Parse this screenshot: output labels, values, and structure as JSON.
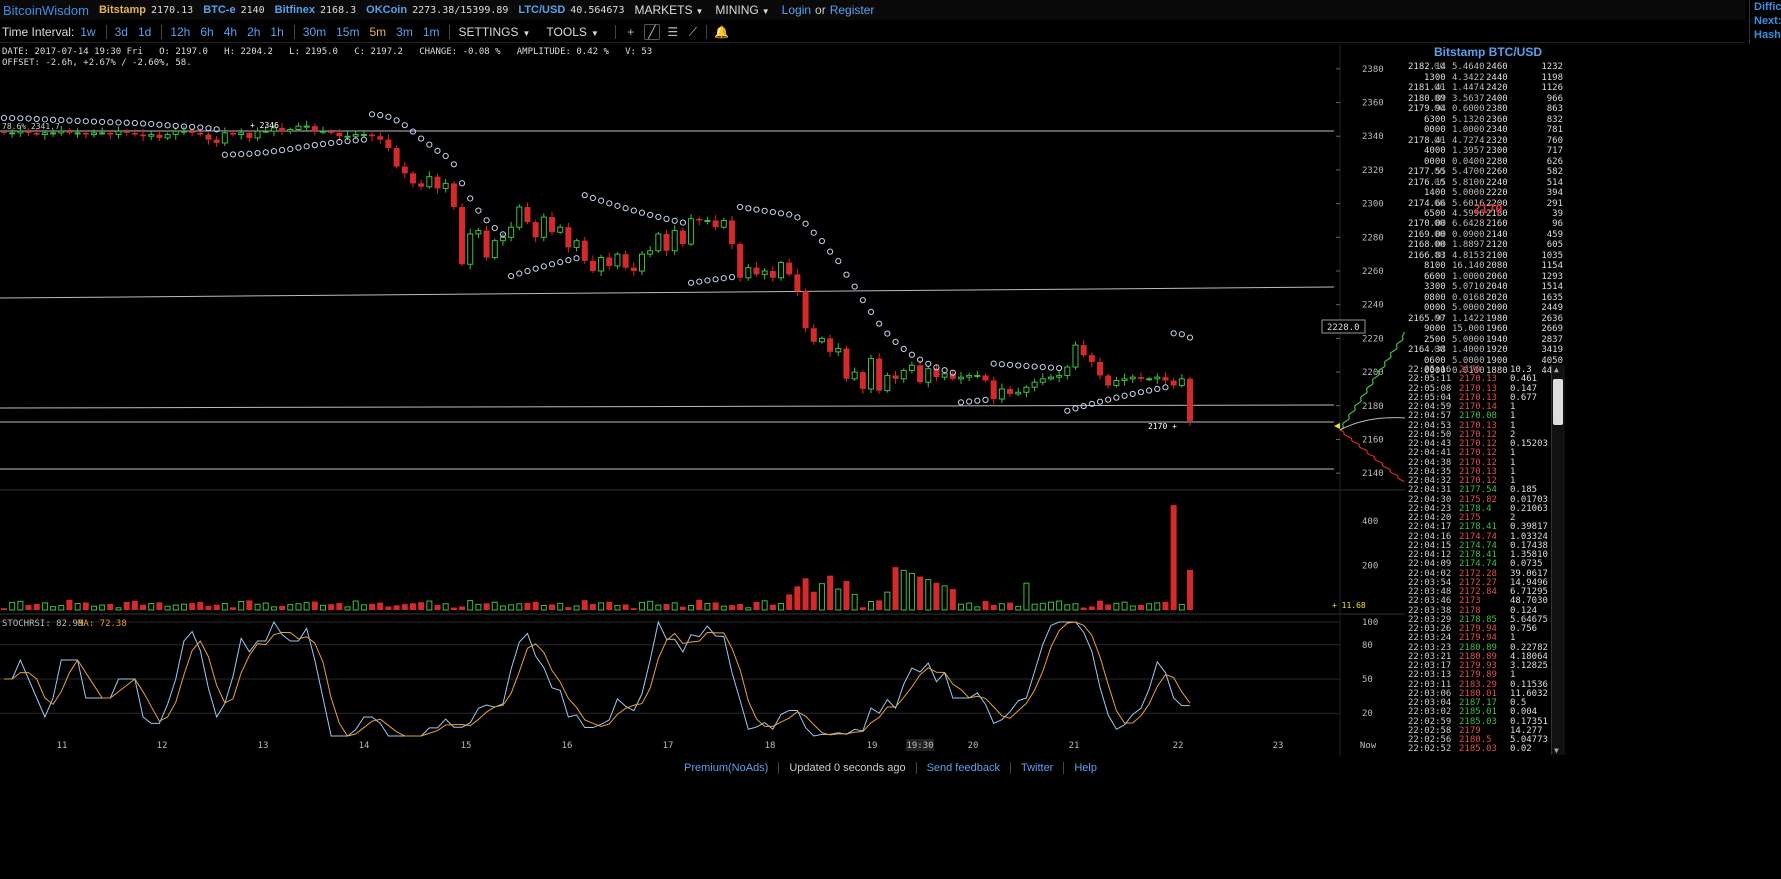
{
  "topbar": {
    "brand": "BitcoinWisdom",
    "tickers": [
      {
        "name": "Bitstamp",
        "value": "2170.13"
      },
      {
        "name": "BTC-e",
        "value": "2140"
      },
      {
        "name": "Bitfinex",
        "value": "2168.3"
      },
      {
        "name": "OKCoin",
        "value": "2273.38/15399.89"
      },
      {
        "name": "LTC/USD",
        "value": "40.564673"
      }
    ],
    "markets": "MARKETS",
    "mining": "MINING",
    "login": "Login",
    "or": "or",
    "register": "Register"
  },
  "rightbox": {
    "l1": "Diffic",
    "l2": "Next:",
    "l3": "Hash"
  },
  "intervals": {
    "label": "Time Interval:",
    "items": [
      "1w",
      "3d",
      "1d",
      "12h",
      "6h",
      "4h",
      "2h",
      "1h",
      "30m",
      "15m",
      "5m",
      "3m",
      "1m"
    ],
    "selected": "5m",
    "settings": "SETTINGS",
    "tools": "TOOLS"
  },
  "info": {
    "line1": "DATE: 2017-07-14 19:30 Fri   O: 2197.0   H: 2204.2   L: 2195.0   C: 2197.2   CHANGE: -0.08 %   AMPLITUDE: 0.42 %   V: 53",
    "line2": "OFFSET: -2.6h, +2.67% / -2.60%, 58."
  },
  "chart_data": {
    "type": "candlestick",
    "price_axis": {
      "ylim": [
        2130,
        2390
      ],
      "ticks": [
        2140,
        2160,
        2180,
        2200,
        2220,
        2240,
        2260,
        2280,
        2300,
        2320,
        2340,
        2360,
        2380
      ]
    },
    "x_ticks": [
      "11",
      "12",
      "13",
      "14",
      "15",
      "16",
      "17",
      "18",
      "19",
      "19:30",
      "20",
      "21",
      "22",
      "23",
      "Now"
    ],
    "close_series": [
      2342,
      2342,
      2343,
      2342,
      2341,
      2342,
      2342,
      2343,
      2342,
      2342,
      2341,
      2342,
      2342,
      2341,
      2343,
      2342,
      2341,
      2340,
      2341,
      2339,
      2341,
      2343,
      2343,
      2342,
      2341,
      2338,
      2336,
      2342,
      2341,
      2342,
      2339,
      2343,
      2343,
      2345,
      2343,
      2344,
      2346,
      2346,
      2343,
      2343,
      2342,
      2340,
      2340,
      2341,
      2341,
      2340,
      2338,
      2333,
      2322,
      2318,
      2312,
      2310,
      2316,
      2309,
      2312,
      2298,
      2264,
      2282,
      2284,
      2268,
      2278,
      2280,
      2286,
      2298,
      2289,
      2280,
      2292,
      2283,
      2286,
      2274,
      2278,
      2266,
      2260,
      2268,
      2263,
      2270,
      2262,
      2260,
      2270,
      2272,
      2282,
      2272,
      2284,
      2276,
      2291,
      2290,
      2290,
      2286,
      2290,
      2276,
      2256,
      2262,
      2258,
      2260,
      2256,
      2265,
      2258,
      2248,
      2226,
      2218,
      2220,
      2212,
      2214,
      2196,
      2200,
      2190,
      2208,
      2189,
      2198,
      2196,
      2201,
      2204,
      2194,
      2202,
      2197,
      2199,
      2196,
      2197,
      2198,
      2198,
      2195,
      2184,
      2190,
      2187,
      2188,
      2191,
      2194,
      2196,
      2197,
      2198,
      2203,
      2216,
      2210,
      2206,
      2198,
      2192,
      2195,
      2196,
      2197,
      2196,
      2196,
      2197,
      2195,
      2192,
      2196,
      2171
    ],
    "volume_axis": {
      "ylim": [
        0,
        520
      ],
      "ticks": [
        200,
        400
      ]
    },
    "volume_marker": "11.68",
    "stochrsi": {
      "label": "STOCHRSI: 82.99",
      "ma_label": "MA: 72.38",
      "ylim": [
        0,
        100
      ],
      "ticks": [
        20,
        50,
        80,
        100
      ]
    },
    "parabolic_sar": true,
    "price_flag": "2228.0",
    "last_price_label": "2170",
    "marker_2346": "2346",
    "marker_left": "78.6% 2341.7"
  },
  "orderbook": {
    "title": "Bitstamp BTC/USD",
    "asks": [
      [
        "2182.14",
        "00",
        "5.4640",
        "2460",
        "1232"
      ],
      [
        "1300",
        "",
        "4.3422",
        "2440",
        "1198"
      ],
      [
        "2181.41",
        "00",
        "1.4474",
        "2420",
        "1126"
      ],
      [
        "2180.89",
        "00",
        "3.5637",
        "2400",
        "966"
      ],
      [
        "2179.94",
        "00",
        "0.6000",
        "2380",
        "863"
      ],
      [
        "6300",
        "",
        "5.1320",
        "2360",
        "832"
      ],
      [
        "0000",
        "",
        "1.0000",
        "2340",
        "781"
      ],
      [
        "2178.41",
        "00",
        "4.7274",
        "2320",
        "760"
      ],
      [
        "4000",
        "",
        "1.3957",
        "2300",
        "717"
      ],
      [
        "0000",
        "",
        "0.0400",
        "2280",
        "626"
      ],
      [
        "2177.55",
        "00",
        "5.4700",
        "2260",
        "582"
      ],
      [
        "2176.15",
        "00",
        "5.8100",
        "2240",
        "514"
      ],
      [
        "1400",
        "",
        "5.0000",
        "2220",
        "394"
      ],
      [
        "2174.66",
        "00",
        "5.6016",
        "2200",
        "291"
      ],
      [
        "6500",
        "",
        "4.5996",
        "2180",
        "39"
      ]
    ],
    "last": "2170",
    "bids": [
      [
        "2170.00",
        "00",
        "6.6428",
        "2160",
        "96"
      ],
      [
        "2169.00",
        "00",
        "0.0900",
        "2140",
        "459"
      ],
      [
        "2168.00",
        "00",
        "1.8897",
        "2120",
        "605"
      ],
      [
        "2166.83",
        "00",
        "4.8153",
        "2100",
        "1035"
      ],
      [
        "8100",
        "",
        "16.140",
        "2080",
        "1154"
      ],
      [
        "6600",
        "",
        "1.0000",
        "2060",
        "1293"
      ],
      [
        "3300",
        "",
        "5.0710",
        "2040",
        "1514"
      ],
      [
        "0800",
        "",
        "0.0168",
        "2020",
        "1635"
      ],
      [
        "0000",
        "",
        "5.0000",
        "2000",
        "2449"
      ],
      [
        "2165.97",
        "00",
        "1.1422",
        "1980",
        "2636"
      ],
      [
        "9000",
        "",
        "15.000",
        "1960",
        "2669"
      ],
      [
        "2500",
        "",
        "5.0000",
        "1940",
        "2837"
      ],
      [
        "2164.38",
        "00",
        "1.4000",
        "1920",
        "3419"
      ],
      [
        "0600",
        "",
        "5.0000",
        "1900",
        "4050"
      ],
      [
        "0000",
        "",
        "0.0100",
        "1880",
        "4479"
      ]
    ]
  },
  "trades": [
    [
      "22:05:16",
      "2170",
      "10.3",
      "r"
    ],
    [
      "22:05:11",
      "2170.13",
      "0.461",
      "r"
    ],
    [
      "22:05:08",
      "2170.13",
      "0.147",
      "r"
    ],
    [
      "22:05:04",
      "2170.13",
      "0.677",
      "r"
    ],
    [
      "22:04:59",
      "2170.14",
      "1",
      "r"
    ],
    [
      "22:04:57",
      "2170.08",
      "1",
      "g"
    ],
    [
      "22:04:53",
      "2170.13",
      "1",
      "r"
    ],
    [
      "22:04:50",
      "2170.12",
      "2",
      "r"
    ],
    [
      "22:04:43",
      "2170.12",
      "0.15203",
      "r"
    ],
    [
      "22:04:41",
      "2170.12",
      "1",
      "r"
    ],
    [
      "22:04:38",
      "2170.12",
      "1",
      "r"
    ],
    [
      "22:04:35",
      "2170.13",
      "1",
      "r"
    ],
    [
      "22:04:32",
      "2170.12",
      "1",
      "r"
    ],
    [
      "22:04:31",
      "2177.54",
      "0.185",
      "g"
    ],
    [
      "22:04:30",
      "2175.82",
      "0.01703",
      "r"
    ],
    [
      "22:04:23",
      "2178.4",
      "0.21063",
      "g"
    ],
    [
      "22:04:20",
      "2175",
      "2",
      "r"
    ],
    [
      "22:04:17",
      "2178.41",
      "0.39817",
      "g"
    ],
    [
      "22:04:16",
      "2174.74",
      "1.03324",
      "r"
    ],
    [
      "22:04:15",
      "2174.74",
      "0.17438",
      "g"
    ],
    [
      "22:04:12",
      "2178.41",
      "1.35810",
      "g"
    ],
    [
      "22:04:09",
      "2174.74",
      "0.0735",
      "g"
    ],
    [
      "22:04:02",
      "2172.28",
      "39.0617",
      "r"
    ],
    [
      "22:03:54",
      "2172.27",
      "14.9496",
      "r"
    ],
    [
      "22:03:48",
      "2172.84",
      "6.71295",
      "r"
    ],
    [
      "22:03:46",
      "2173",
      "48.7030",
      "r"
    ],
    [
      "22:03:38",
      "2178",
      "0.124",
      "r"
    ],
    [
      "22:03:29",
      "2178.85",
      "5.64675",
      "g"
    ],
    [
      "22:03:26",
      "2179.94",
      "0.756",
      "r"
    ],
    [
      "22:03:24",
      "2179.94",
      "1",
      "r"
    ],
    [
      "22:03:23",
      "2180.89",
      "0.22782",
      "g"
    ],
    [
      "22:03:21",
      "2180.89",
      "4.18064",
      "r"
    ],
    [
      "22:03:17",
      "2179.93",
      "3.12825",
      "r"
    ],
    [
      "22:03:13",
      "2179.89",
      "1",
      "r"
    ],
    [
      "22:03:11",
      "2183.29",
      "0.11536",
      "r"
    ],
    [
      "22:03:06",
      "2180.01",
      "11.6032",
      "r"
    ],
    [
      "22:03:04",
      "2187.17",
      "0.5",
      "g"
    ],
    [
      "22:03:02",
      "2185.01",
      "0.004",
      "g"
    ],
    [
      "22:02:59",
      "2185.03",
      "0.17351",
      "g"
    ],
    [
      "22:02:58",
      "2179",
      "14.277",
      "r"
    ],
    [
      "22:02:56",
      "2180.5",
      "5.04773",
      "r"
    ],
    [
      "22:02:52",
      "2185.03",
      "0.02",
      "r"
    ]
  ],
  "footer": {
    "premium": "Premium(NoAds)",
    "updated": "Updated 0 seconds ago",
    "feedback": "Send feedback",
    "twitter": "Twitter",
    "help": "Help"
  },
  "colors": {
    "up": "#3fbf3f",
    "down": "#d42a2a",
    "accent": "#5aa0ef",
    "highlight": "#e8b24a"
  }
}
